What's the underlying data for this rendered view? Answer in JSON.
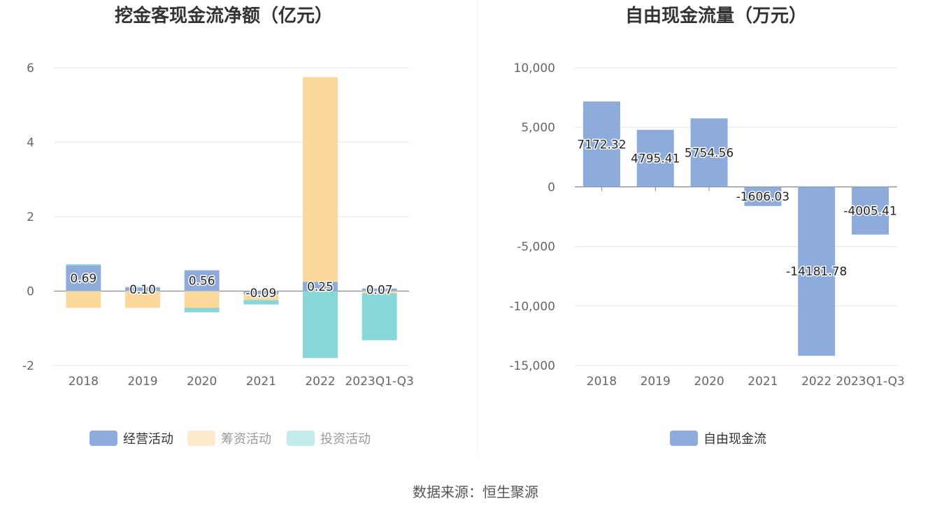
{
  "source_label": "数据来源：恒生聚源",
  "colors": {
    "operating": "#8eacdb",
    "financing": "#fdd89b",
    "investing": "#88d7d8",
    "free_cash_flow": "#8eacdb",
    "grid": "#e3e6f0",
    "axis": "#888888"
  },
  "chart_data": [
    {
      "type": "bar",
      "stacked": true,
      "title": "挖金客现金流净额（亿元）",
      "categories": [
        "2018",
        "2019",
        "2020",
        "2021",
        "2022",
        "2023Q1-Q3"
      ],
      "ylim": [
        -2,
        6
      ],
      "yticks": [
        -2,
        0,
        2,
        4,
        6
      ],
      "ytick_labels": [
        "-2",
        "0",
        "2",
        "4",
        "6"
      ],
      "grid": true,
      "legend_position": "bottom",
      "series": [
        {
          "name": "经营活动",
          "values": [
            0.69,
            0.1,
            0.56,
            -0.09,
            0.25,
            0.07
          ],
          "labels": [
            "0.69",
            "0.10",
            "0.56",
            "-0.09",
            "0.25",
            "0.07"
          ]
        },
        {
          "name": "筹资活动",
          "values": [
            -0.45,
            -0.45,
            -0.45,
            -0.15,
            5.5,
            -0.06
          ]
        },
        {
          "name": "投资活动",
          "values": [
            0.03,
            0.01,
            -0.12,
            -0.12,
            -1.8,
            -1.26
          ]
        }
      ]
    },
    {
      "type": "bar",
      "title": "自由现金流量（万元）",
      "categories": [
        "2018",
        "2019",
        "2020",
        "2021",
        "2022",
        "2023Q1-Q3"
      ],
      "ylim": [
        -15000,
        10000
      ],
      "yticks": [
        -15000,
        -10000,
        -5000,
        0,
        5000,
        10000
      ],
      "ytick_labels": [
        "-15,000",
        "-10,000",
        "-5,000",
        "0",
        "5,000",
        "10,000"
      ],
      "grid": true,
      "legend_position": "bottom",
      "series": [
        {
          "name": "自由现金流",
          "values": [
            7172.32,
            4795.41,
            5754.56,
            -1606.03,
            -14181.78,
            -4005.41
          ],
          "labels": [
            "7172.32",
            "4795.41",
            "5754.56",
            "-1606.03",
            "-14181.78",
            "-4005.41"
          ]
        }
      ]
    }
  ]
}
